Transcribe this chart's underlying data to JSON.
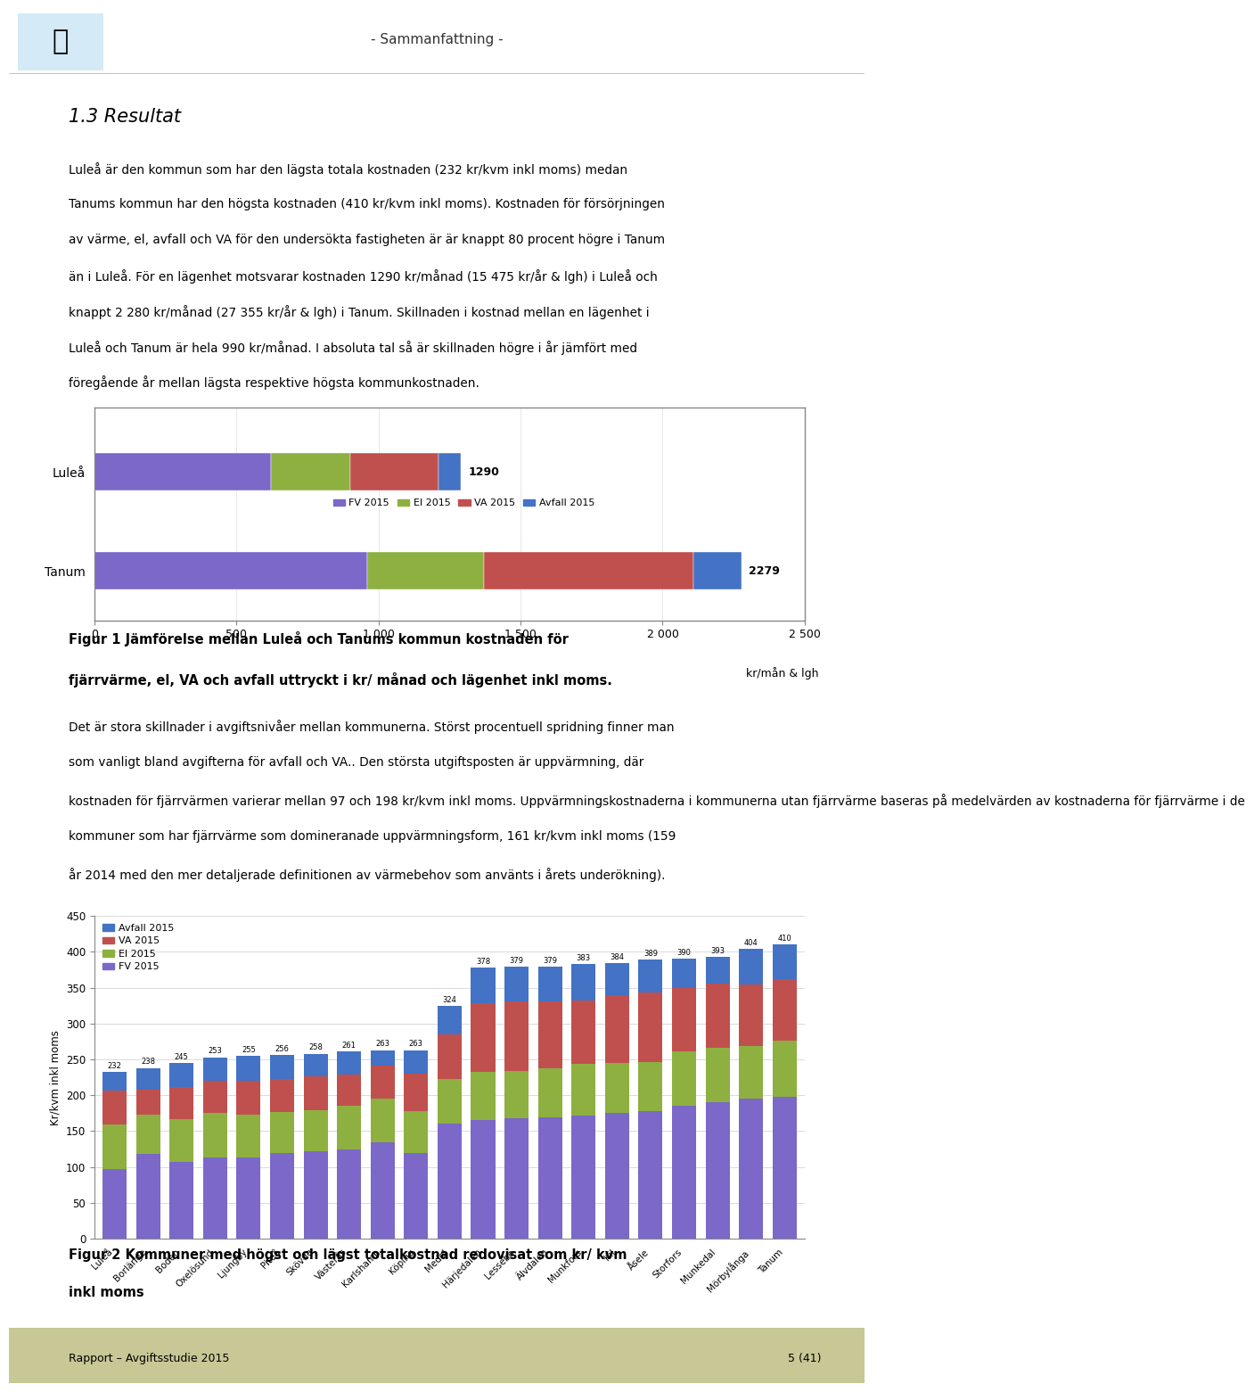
{
  "page_title": "- Sammanfattning -",
  "section_title": "1.3 Resultat",
  "body_text_1_lines": [
    "Luleå är den kommun som har den lägsta totala kostnaden (232 kr/kvm inkl moms) medan",
    "Tanums kommun har den högsta kostnaden (410 kr/kvm inkl moms). Kostnaden för försörjningen",
    "av värme, el, avfall och VA för den undersökta fastigheten är är knappt 80 procent högre i Tanum",
    "än i Luleå. För en lägenhet motsvarar kostnaden 1290 kr/månad (15 475 kr/år & lgh) i Luleå och",
    "knappt 2 280 kr/månad (27 355 kr/år & lgh) i Tanum. Skillnaden i kostnad mellan en lägenhet i",
    "Luleå och Tanum är hela 990 kr/månad. I absoluta tal så är skillnaden högre i år jämfört med",
    "föregående år mellan lägsta respektive högsta kommunkostnaden."
  ],
  "fig1_caption_line1": "Figur 1 Jämförelse mellan Luleå och Tanums kommun kostnaden för",
  "fig1_caption_line2": "fjärrvärme, el, VA och avfall uttryckt i kr/ månad och lägenhet inkl moms.",
  "body_text_2_lines": [
    "Det är stora skillnader i avgiftsnivåer mellan kommunerna. Störst procentuell spridning finner man",
    "som vanligt bland avgifterna för avfall och VA.. Den största utgiftsposten är uppvärmning, där",
    "kostnaden för fjärrvärmen varierar mellan 97 och 198 kr/kvm inkl moms. Uppvärmningskostnaderna i kommunerna utan fjärrvärme baseras på medelvärden av kostnaderna för fjärrvärme i de",
    "kommuner som har fjärrvärme som domineranade uppvärmningsform, 161 kr/kvm inkl moms (159",
    "år 2014 med den mer detaljerade definitionen av värmebehov som använts i årets underökning)."
  ],
  "fig2_caption_line1": "Figur 2 Kommuner med högst och lägst totalkostnad redovisat som kr/ kvm",
  "fig2_caption_line2": "inkl moms",
  "footer_text": "Rapport – Avgiftsstudie 2015",
  "footer_page": "5 (41)",
  "chart1": {
    "categories": [
      "Luleå",
      "Tanum"
    ],
    "fv": [
      620,
      960
    ],
    "el": [
      280,
      410
    ],
    "va": [
      310,
      740
    ],
    "avfall": [
      80,
      169
    ],
    "totals": [
      1290,
      2279
    ],
    "xlim": [
      0,
      2500
    ],
    "xticks": [
      0,
      500,
      1000,
      1500,
      2000,
      2500
    ],
    "xlabel": "kr/mån & lgh",
    "legend_labels": [
      "FV 2015",
      "El 2015",
      "VA 2015",
      "Avfall 2015"
    ],
    "colors": [
      "#7B68C8",
      "#8DB040",
      "#C0504D",
      "#4472C4"
    ]
  },
  "chart2": {
    "categories": [
      "Luleå",
      "Borlänge",
      "Boden",
      "Oxelösund",
      "Ljungby",
      "Piteå",
      "Skövde",
      "Västerås",
      "Karlshamn",
      "Köping",
      "Medel",
      "Härjedalen",
      "Lessebo",
      "Älvdalen",
      "Munkfors",
      "Kil",
      "Åsele",
      "Storfors",
      "Munkedal",
      "Mörbylånga",
      "Tanum"
    ],
    "fv": [
      97,
      118,
      107,
      113,
      113,
      119,
      122,
      125,
      135,
      120,
      161,
      165,
      168,
      169,
      172,
      175,
      178,
      185,
      190,
      195,
      198
    ],
    "el": [
      62,
      55,
      60,
      62,
      60,
      58,
      57,
      60,
      60,
      58,
      62,
      68,
      66,
      68,
      72,
      70,
      68,
      76,
      76,
      74,
      78
    ],
    "va": [
      47,
      35,
      45,
      45,
      47,
      46,
      47,
      44,
      46,
      52,
      62,
      95,
      97,
      94,
      88,
      94,
      97,
      88,
      90,
      85,
      86
    ],
    "avfall": [
      26,
      30,
      33,
      33,
      35,
      33,
      32,
      32,
      22,
      33,
      39,
      50,
      48,
      48,
      51,
      45,
      46,
      41,
      37,
      50,
      48
    ],
    "totals": [
      232,
      238,
      245,
      253,
      255,
      256,
      258,
      261,
      263,
      263,
      324,
      378,
      379,
      379,
      383,
      384,
      389,
      390,
      393,
      404,
      410
    ],
    "ylim": [
      0,
      450
    ],
    "yticks": [
      0,
      50,
      100,
      150,
      200,
      250,
      300,
      350,
      400,
      450
    ],
    "ylabel": "Kr/kvm inkl moms",
    "legend_labels": [
      "Avfall 2015",
      "VA 2015",
      "El 2015",
      "FV 2015"
    ],
    "colors_stack": [
      "#7B68C8",
      "#8DB040",
      "#C0504D",
      "#4472C4"
    ]
  },
  "background_color": "#ffffff",
  "text_color": "#000000",
  "chart_border_color": "#888888",
  "footer_bar_color": "#C8C896"
}
